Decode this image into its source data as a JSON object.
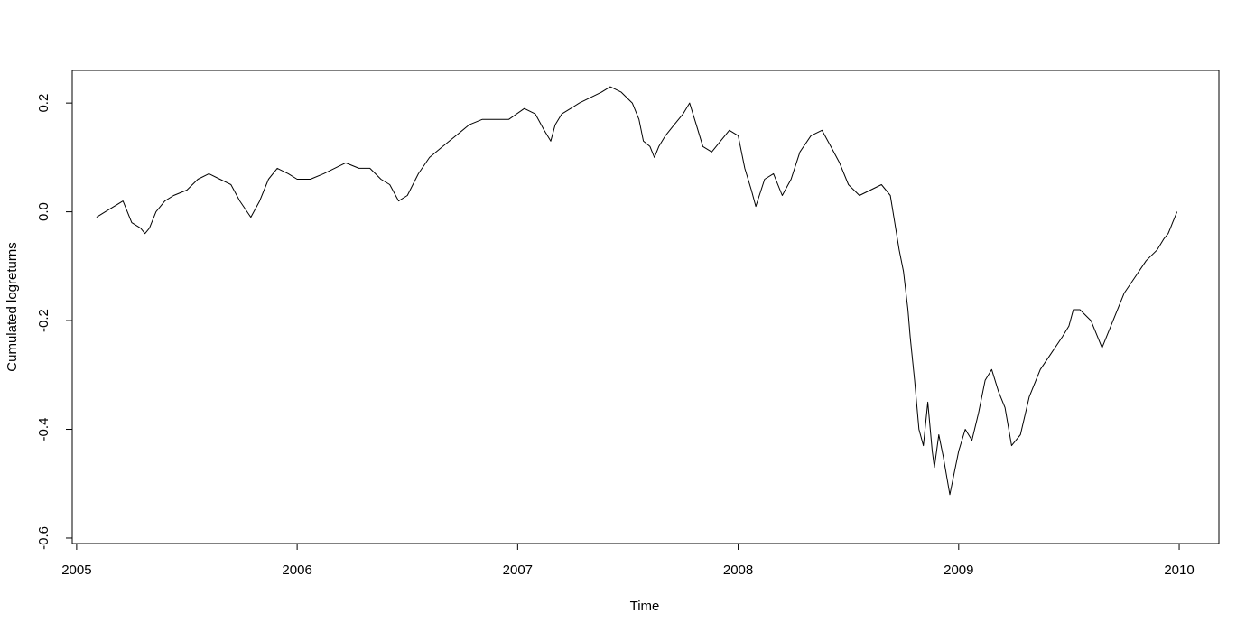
{
  "chart_data": {
    "type": "line",
    "title": "",
    "xlabel": "Time",
    "ylabel": "Cumulated logreturns",
    "xlim": [
      2004.98,
      2010.18
    ],
    "ylim": [
      -0.61,
      0.26
    ],
    "grid": false,
    "x_ticks": [
      2005,
      2006,
      2007,
      2008,
      2009,
      2010
    ],
    "x_tick_labels": [
      "2005",
      "2006",
      "2007",
      "2008",
      "2009",
      "2010"
    ],
    "y_ticks": [
      -0.6,
      -0.4,
      -0.2,
      0.0,
      0.2
    ],
    "y_tick_labels": [
      "-0.6",
      "-0.4",
      "-0.2",
      "0.0",
      "0.2"
    ],
    "series": [
      {
        "x": [
          2005.09,
          2005.13,
          2005.17,
          2005.21,
          2005.25,
          2005.29,
          2005.31,
          2005.33,
          2005.36,
          2005.4,
          2005.44,
          2005.5,
          2005.55,
          2005.6,
          2005.65,
          2005.7,
          2005.74,
          2005.79,
          2005.83,
          2005.87,
          2005.91,
          2005.96,
          2006.0,
          2006.06,
          2006.12,
          2006.17,
          2006.22,
          2006.28,
          2006.33,
          2006.38,
          2006.42,
          2006.46,
          2006.5,
          2006.55,
          2006.6,
          2006.66,
          2006.72,
          2006.78,
          2006.84,
          2006.9,
          2006.96,
          2007.03,
          2007.08,
          2007.12,
          2007.15,
          2007.17,
          2007.2,
          2007.24,
          2007.28,
          2007.33,
          2007.38,
          2007.42,
          2007.47,
          2007.52,
          2007.55,
          2007.57,
          2007.6,
          2007.62,
          2007.64,
          2007.67,
          2007.71,
          2007.75,
          2007.78,
          2007.81,
          2007.84,
          2007.88,
          2007.92,
          2007.96,
          2008.0,
          2008.03,
          2008.06,
          2008.08,
          2008.12,
          2008.16,
          2008.2,
          2008.24,
          2008.28,
          2008.33,
          2008.38,
          2008.42,
          2008.46,
          2008.5,
          2008.55,
          2008.6,
          2008.65,
          2008.69,
          2008.71,
          2008.73,
          2008.75,
          2008.77,
          2008.78,
          2008.8,
          2008.82,
          2008.84,
          2008.86,
          2008.88,
          2008.89,
          2008.91,
          2008.93,
          2008.96,
          2009.0,
          2009.03,
          2009.06,
          2009.09,
          2009.12,
          2009.15,
          2009.18,
          2009.21,
          2009.24,
          2009.28,
          2009.32,
          2009.37,
          2009.42,
          2009.47,
          2009.5,
          2009.52,
          2009.55,
          2009.6,
          2009.65,
          2009.7,
          2009.75,
          2009.8,
          2009.85,
          2009.9,
          2009.93,
          2009.95,
          2009.96,
          2009.97,
          2009.98,
          2009.99
        ],
        "y": [
          -0.01,
          0.0,
          0.01,
          0.02,
          -0.02,
          -0.03,
          -0.04,
          -0.03,
          0.0,
          0.02,
          0.03,
          0.04,
          0.06,
          0.07,
          0.06,
          0.05,
          0.02,
          -0.01,
          0.02,
          0.06,
          0.08,
          0.07,
          0.06,
          0.06,
          0.07,
          0.08,
          0.09,
          0.08,
          0.08,
          0.06,
          0.05,
          0.02,
          0.03,
          0.07,
          0.1,
          0.12,
          0.14,
          0.16,
          0.17,
          0.17,
          0.17,
          0.19,
          0.18,
          0.15,
          0.13,
          0.16,
          0.18,
          0.19,
          0.2,
          0.21,
          0.22,
          0.23,
          0.22,
          0.2,
          0.17,
          0.13,
          0.12,
          0.1,
          0.12,
          0.14,
          0.16,
          0.18,
          0.2,
          0.16,
          0.12,
          0.11,
          0.13,
          0.15,
          0.14,
          0.08,
          0.04,
          0.01,
          0.06,
          0.07,
          0.03,
          0.06,
          0.11,
          0.14,
          0.15,
          0.12,
          0.09,
          0.05,
          0.03,
          0.04,
          0.05,
          0.03,
          -0.02,
          -0.07,
          -0.11,
          -0.18,
          -0.23,
          -0.31,
          -0.4,
          -0.43,
          -0.35,
          -0.44,
          -0.47,
          -0.41,
          -0.45,
          -0.52,
          -0.44,
          -0.4,
          -0.42,
          -0.37,
          -0.31,
          -0.29,
          -0.33,
          -0.36,
          -0.43,
          -0.41,
          -0.34,
          -0.29,
          -0.26,
          -0.23,
          -0.21,
          -0.18,
          -0.18,
          -0.2,
          -0.25,
          -0.2,
          -0.15,
          -0.12,
          -0.09,
          -0.07,
          -0.05,
          -0.04,
          -0.03,
          -0.02,
          -0.01,
          0.0
        ]
      }
    ]
  }
}
